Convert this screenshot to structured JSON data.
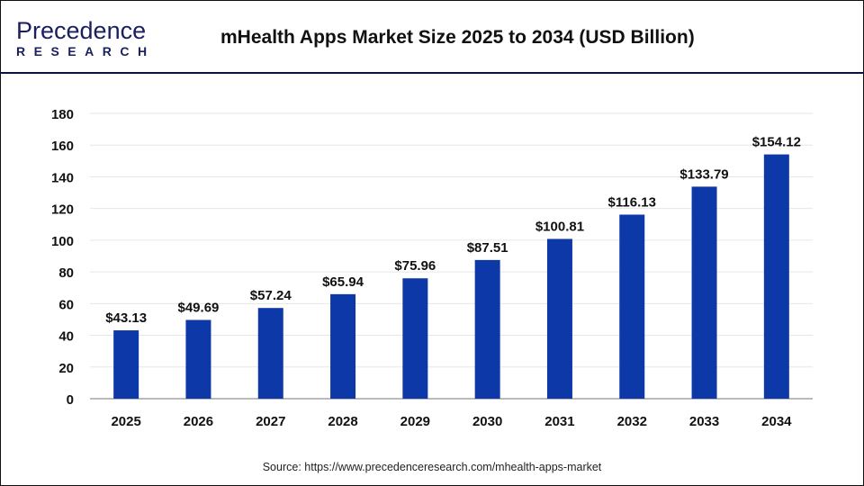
{
  "logo": {
    "brand_top": "Precedence",
    "brand_bottom": "RESEARCH"
  },
  "title": "mHealth Apps Market Size 2025 to 2034 (USD Billion)",
  "source": "Source: https://www.precedenceresearch.com/mhealth-apps-market",
  "colors": {
    "bar": "#0d39a8",
    "header_line": "#0b1340"
  },
  "chart_data": {
    "type": "bar",
    "title": "mHealth Apps Market Size 2025 to 2034 (USD Billion)",
    "categories": [
      "2025",
      "2026",
      "2027",
      "2028",
      "2029",
      "2030",
      "2031",
      "2032",
      "2033",
      "2034"
    ],
    "values": [
      43.13,
      49.69,
      57.24,
      65.94,
      75.96,
      87.51,
      100.81,
      116.13,
      133.79,
      154.12
    ],
    "data_labels": [
      "$43.13",
      "$49.69",
      "$57.24",
      "$65.94",
      "$75.96",
      "$87.51",
      "$100.81",
      "$116.13",
      "$133.79",
      "$154.12"
    ],
    "ylim": [
      0,
      180
    ],
    "yticks": [
      0,
      20,
      40,
      60,
      80,
      100,
      120,
      140,
      160,
      180
    ],
    "grid": true,
    "xlabel": "",
    "ylabel": ""
  }
}
